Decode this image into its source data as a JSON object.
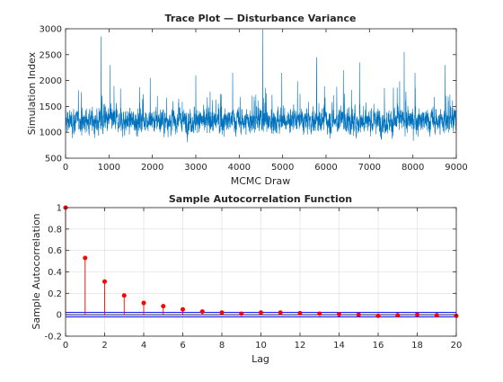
{
  "chart_data": [
    {
      "type": "line",
      "title": "Trace Plot — Disturbance Variance",
      "xlabel": "MCMC Draw",
      "ylabel": "Simulation Index",
      "xlim": [
        0,
        9000
      ],
      "ylim": [
        500,
        3000
      ],
      "xticks": [
        0,
        1000,
        2000,
        3000,
        4000,
        5000,
        6000,
        7000,
        8000,
        9000
      ],
      "yticks": [
        500,
        1000,
        1500,
        2000,
        2500,
        3000
      ],
      "grid": false,
      "series_color": "#0072bd",
      "series_summary": {
        "n_draws": 9000,
        "typical_range": [
          750,
          1700
        ],
        "center": 1220
      },
      "spikes": [
        {
          "x": 820,
          "y": 2850
        },
        {
          "x": 1020,
          "y": 2300
        },
        {
          "x": 1950,
          "y": 2050
        },
        {
          "x": 3000,
          "y": 2100
        },
        {
          "x": 3850,
          "y": 2150
        },
        {
          "x": 4540,
          "y": 2990
        },
        {
          "x": 4980,
          "y": 2150
        },
        {
          "x": 5780,
          "y": 2450
        },
        {
          "x": 6400,
          "y": 2200
        },
        {
          "x": 6770,
          "y": 2350
        },
        {
          "x": 7800,
          "y": 2550
        },
        {
          "x": 8050,
          "y": 2150
        },
        {
          "x": 8740,
          "y": 2300
        }
      ]
    },
    {
      "type": "stem",
      "title": "Sample Autocorrelation Function",
      "xlabel": "Lag",
      "ylabel": "Sample Autocorrelation",
      "xlim": [
        0,
        20
      ],
      "ylim": [
        -0.2,
        1
      ],
      "xticks": [
        0,
        2,
        4,
        6,
        8,
        10,
        12,
        14,
        16,
        18,
        20
      ],
      "yticks": [
        -0.2,
        0,
        0.2,
        0.4,
        0.6,
        0.8,
        1
      ],
      "grid": true,
      "marker_color": "#ff0000",
      "bound_color": "#0000ff",
      "lags": [
        0,
        1,
        2,
        3,
        4,
        5,
        6,
        7,
        8,
        9,
        10,
        11,
        12,
        13,
        14,
        15,
        16,
        17,
        18,
        19,
        20
      ],
      "values": [
        1.0,
        0.53,
        0.31,
        0.18,
        0.11,
        0.08,
        0.05,
        0.03,
        0.02,
        0.01,
        0.02,
        0.02,
        0.015,
        0.01,
        0.005,
        0.0,
        -0.01,
        -0.005,
        0.0,
        -0.005,
        -0.01
      ],
      "confidence_bounds": [
        0.021,
        -0.021
      ]
    }
  ]
}
